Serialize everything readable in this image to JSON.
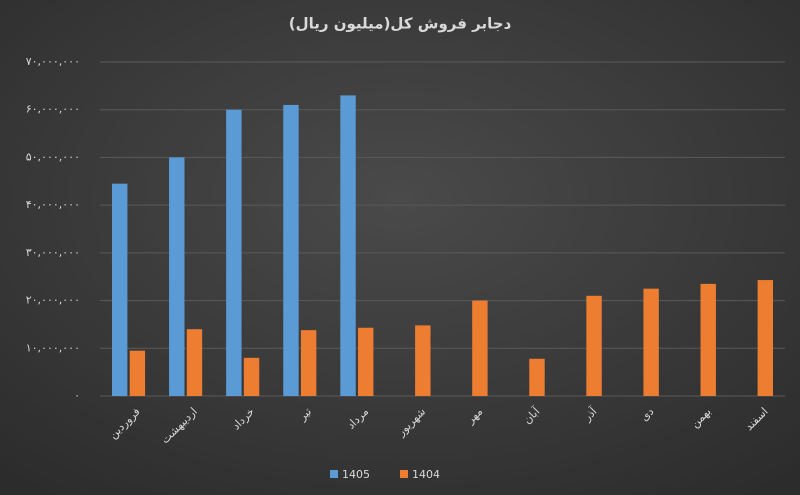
{
  "chart_data": {
    "type": "bar",
    "title": "دجابر فروش کل(میلیون ریال)",
    "categories": [
      "فروردین",
      "اردیبهشت",
      "خرداد",
      "تیر",
      "مرداد",
      "شهریور",
      "مهر",
      "آبان",
      "آذر",
      "دی",
      "بهمن",
      "اسفند"
    ],
    "series": [
      {
        "name": "1405",
        "color": "#5b9bd5",
        "values": [
          44500000,
          50000000,
          60000000,
          61000000,
          63000000,
          null,
          null,
          null,
          null,
          null,
          null,
          null
        ]
      },
      {
        "name": "1404",
        "color": "#ed7d31",
        "values": [
          9500000,
          14000000,
          8000000,
          13800000,
          14300000,
          14800000,
          20000000,
          7800000,
          21000000,
          22500000,
          23500000,
          24300000
        ]
      }
    ],
    "ylim": [
      0,
      70000000
    ],
    "yticks": [
      {
        "value": 0,
        "label": "۰"
      },
      {
        "value": 10000000,
        "label": "۱۰,۰۰۰,۰۰۰"
      },
      {
        "value": 20000000,
        "label": "۲۰,۰۰۰,۰۰۰"
      },
      {
        "value": 30000000,
        "label": "۳۰,۰۰۰,۰۰۰"
      },
      {
        "value": 40000000,
        "label": "۴۰,۰۰۰,۰۰۰"
      },
      {
        "value": 50000000,
        "label": "۵۰,۰۰۰,۰۰۰"
      },
      {
        "value": 60000000,
        "label": "۶۰,۰۰۰,۰۰۰"
      },
      {
        "value": 70000000,
        "label": "۷۰,۰۰۰,۰۰۰"
      }
    ],
    "grid": true,
    "legend": "bottom"
  }
}
